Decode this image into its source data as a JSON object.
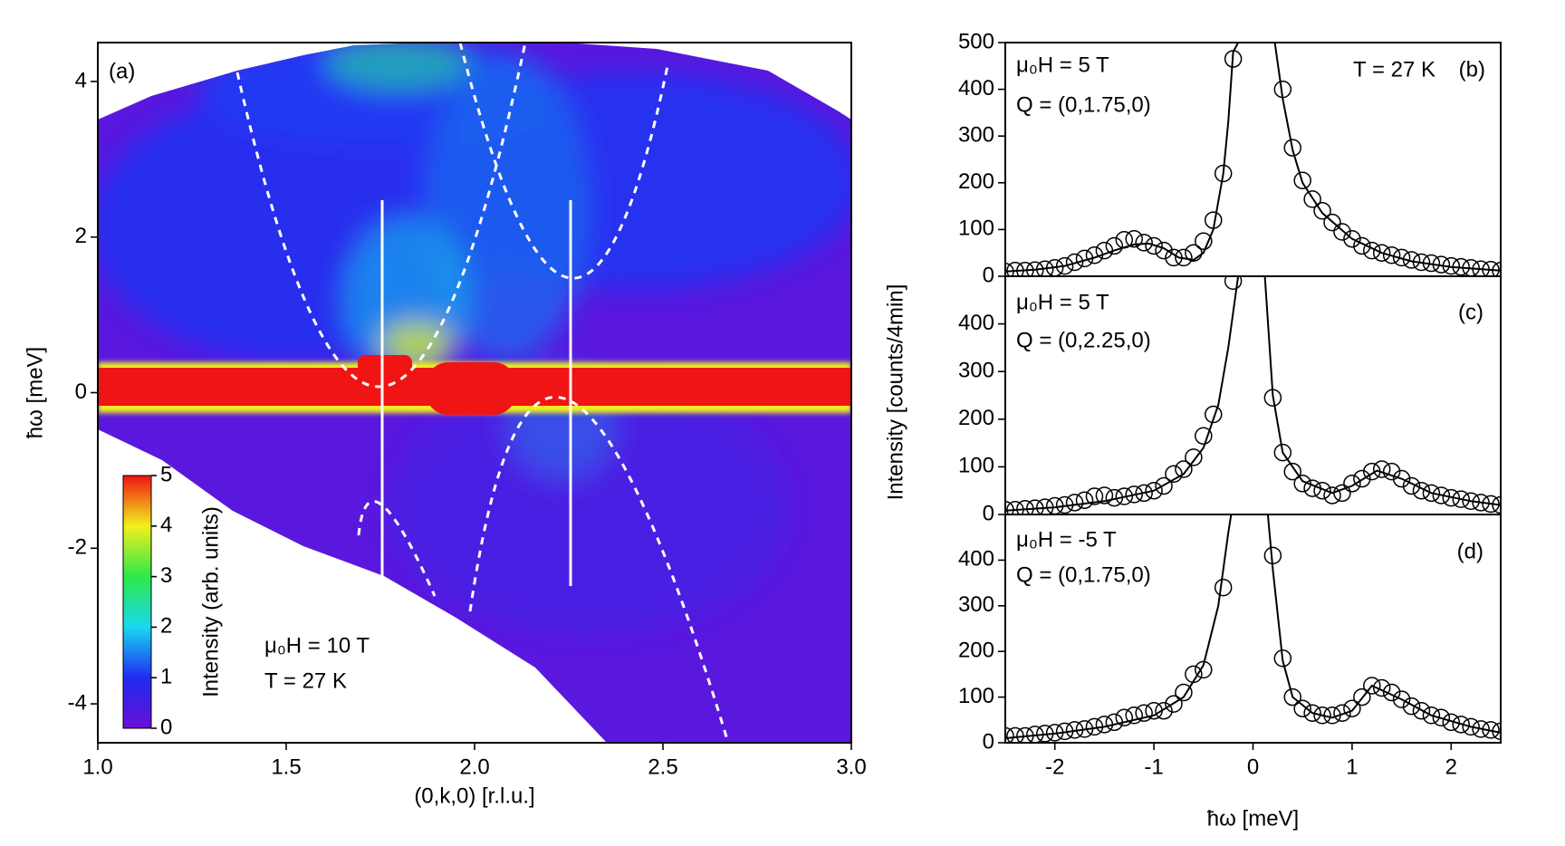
{
  "chart_data": [
    {
      "type": "heatmap",
      "xlabel": "(0,k,0) [r.l.u.]",
      "ylabel": "ħω [meV]",
      "xlim": [
        1.0,
        3.0
      ],
      "xticks": [
        {
          "value": 1.0,
          "label": "1.0"
        },
        1.5,
        {
          "value": 2.0,
          "label": "2.0"
        },
        2.5,
        {
          "value": 3.0,
          "label": "3.0"
        }
      ],
      "ylim": [
        -4.5,
        4.5
      ],
      "yticks": [
        -4,
        -2,
        0,
        2,
        4
      ],
      "colorbar": {
        "label": "Intensity (arb. units)",
        "lim": [
          0,
          5
        ],
        "ticks": [
          0,
          1,
          2,
          3,
          4,
          5
        ],
        "colors": [
          "#6a0fd6",
          "#1f2cf0",
          "#19d8f0",
          "#2ee84a",
          "#f2f01c",
          "#f01414"
        ]
      },
      "annotations": [
        "(a)",
        "μ₀H = 10 T",
        "T = 27 K"
      ]
    },
    {
      "type": "scatter",
      "xlim": [
        -2.5,
        2.5
      ],
      "ylim": [
        0,
        500
      ],
      "yticks": [
        0,
        100,
        200,
        300,
        400,
        500
      ],
      "annotations": [
        "μ₀H = 5 T",
        "Q  = (0,1.75,0)",
        "T = 27 K",
        "(b)"
      ],
      "series": [
        {
          "type": "scatter",
          "color": "#000000",
          "x": [
            -2.5,
            -2.4,
            -2.3,
            -2.2,
            -2.1,
            -2.0,
            -1.9,
            -1.8,
            -1.7,
            -1.6,
            -1.5,
            -1.4,
            -1.3,
            -1.2,
            -1.1,
            -1.0,
            -0.9,
            -0.8,
            -0.7,
            -0.6,
            -0.5,
            -0.4,
            -0.3,
            -0.2,
            0.3,
            0.4,
            0.5,
            0.6,
            0.7,
            0.8,
            0.9,
            1.0,
            1.1,
            1.2,
            1.3,
            1.4,
            1.5,
            1.6,
            1.7,
            1.8,
            1.9,
            2.0,
            2.1,
            2.2,
            2.3,
            2.4,
            2.5
          ],
          "values": [
            10,
            12,
            12,
            13,
            15,
            18,
            22,
            30,
            38,
            45,
            55,
            65,
            78,
            80,
            72,
            65,
            55,
            40,
            40,
            50,
            75,
            120,
            220,
            465,
            400,
            275,
            205,
            165,
            140,
            115,
            95,
            80,
            65,
            55,
            50,
            45,
            40,
            35,
            30,
            28,
            25,
            22,
            20,
            18,
            15,
            14,
            12
          ]
        },
        {
          "type": "line",
          "color": "#000000",
          "x": [
            -2.5,
            -2.2,
            -1.9,
            -1.6,
            -1.4,
            -1.2,
            -1.05,
            -0.9,
            -0.75,
            -0.6,
            -0.5,
            -0.4,
            -0.3,
            -0.25,
            -0.2,
            -0.15,
            0,
            0.22,
            0.3,
            0.4,
            0.5,
            0.7,
            1.0,
            1.3,
            1.6,
            2.0,
            2.5
          ],
          "values": [
            10,
            14,
            22,
            40,
            55,
            68,
            70,
            60,
            40,
            35,
            50,
            100,
            220,
            330,
            480,
            500,
            null,
            500,
            380,
            270,
            200,
            135,
            80,
            50,
            32,
            20,
            12
          ]
        }
      ]
    },
    {
      "type": "scatter",
      "xlim": [
        -2.5,
        2.5
      ],
      "ylim": [
        0,
        500
      ],
      "yticks": [
        0,
        100,
        200,
        300,
        400
      ],
      "ylabel": "Intensity [counts/4min]",
      "annotations": [
        "μ₀H = 5 T",
        "Q  = (0,2.25,0)",
        "(c)"
      ],
      "series": [
        {
          "type": "scatter",
          "color": "#000000",
          "x": [
            -2.5,
            -2.4,
            -2.3,
            -2.2,
            -2.1,
            -2.0,
            -1.9,
            -1.8,
            -1.7,
            -1.6,
            -1.5,
            -1.4,
            -1.3,
            -1.2,
            -1.1,
            -1.0,
            -0.9,
            -0.8,
            -0.7,
            -0.6,
            -0.5,
            -0.4,
            -0.2,
            0.2,
            0.3,
            0.4,
            0.5,
            0.6,
            0.7,
            0.8,
            0.9,
            1.0,
            1.1,
            1.2,
            1.3,
            1.4,
            1.5,
            1.6,
            1.7,
            1.8,
            1.9,
            2.0,
            2.1,
            2.2,
            2.3,
            2.4,
            2.5
          ],
          "values": [
            10,
            10,
            12,
            13,
            15,
            18,
            20,
            25,
            30,
            38,
            40,
            35,
            38,
            42,
            45,
            50,
            60,
            85,
            95,
            120,
            165,
            210,
            490,
            245,
            130,
            90,
            65,
            55,
            50,
            40,
            45,
            65,
            75,
            90,
            95,
            90,
            75,
            60,
            50,
            45,
            40,
            35,
            32,
            28,
            25,
            22,
            20
          ]
        },
        {
          "type": "line",
          "color": "#000000",
          "x": [
            -2.5,
            -2.0,
            -1.5,
            -1.0,
            -0.7,
            -0.5,
            -0.35,
            -0.25,
            -0.15,
            0,
            0.12,
            0.2,
            0.3,
            0.5,
            0.8,
            1.0,
            1.25,
            1.5,
            1.8,
            2.2,
            2.5
          ],
          "values": [
            8,
            15,
            28,
            50,
            85,
            140,
            230,
            350,
            500,
            null,
            500,
            250,
            130,
            70,
            45,
            60,
            92,
            75,
            45,
            28,
            20
          ]
        }
      ]
    },
    {
      "type": "scatter",
      "xlim": [
        -2.5,
        2.5
      ],
      "ylim": [
        0,
        500
      ],
      "yticks": [
        0,
        100,
        200,
        300,
        400
      ],
      "xticks": [
        -2,
        -1,
        0,
        1,
        2
      ],
      "xlabel": "ħω [meV]",
      "annotations": [
        "μ₀H = -5 T",
        "Q  = (0,1.75,0)",
        "(d)"
      ],
      "series": [
        {
          "type": "scatter",
          "color": "#000000",
          "x": [
            -2.5,
            -2.4,
            -2.3,
            -2.2,
            -2.1,
            -2.0,
            -1.9,
            -1.8,
            -1.7,
            -1.6,
            -1.5,
            -1.4,
            -1.3,
            -1.2,
            -1.1,
            -1.0,
            -0.9,
            -0.8,
            -0.7,
            -0.6,
            -0.5,
            -0.3,
            0.2,
            0.3,
            0.4,
            0.5,
            0.6,
            0.7,
            0.8,
            0.9,
            1.0,
            1.1,
            1.2,
            1.3,
            1.4,
            1.5,
            1.6,
            1.7,
            1.8,
            1.9,
            2.0,
            2.1,
            2.2,
            2.3,
            2.4,
            2.5
          ],
          "values": [
            15,
            15,
            15,
            18,
            20,
            22,
            25,
            28,
            30,
            35,
            40,
            45,
            55,
            60,
            65,
            70,
            70,
            85,
            110,
            150,
            160,
            340,
            410,
            185,
            100,
            75,
            65,
            60,
            60,
            65,
            75,
            100,
            125,
            120,
            110,
            95,
            80,
            70,
            60,
            55,
            45,
            40,
            35,
            30,
            28,
            25
          ]
        },
        {
          "type": "line",
          "color": "#000000",
          "x": [
            -2.5,
            -2.0,
            -1.5,
            -1.0,
            -0.7,
            -0.5,
            -0.35,
            -0.25,
            -0.22,
            0,
            0.15,
            0.2,
            0.3,
            0.4,
            0.6,
            0.8,
            1.0,
            1.2,
            1.5,
            1.8,
            2.2,
            2.5
          ],
          "values": [
            10,
            20,
            35,
            60,
            100,
            170,
            300,
            460,
            500,
            null,
            500,
            380,
            180,
            100,
            65,
            55,
            70,
            125,
            95,
            60,
            35,
            22
          ]
        }
      ]
    }
  ]
}
